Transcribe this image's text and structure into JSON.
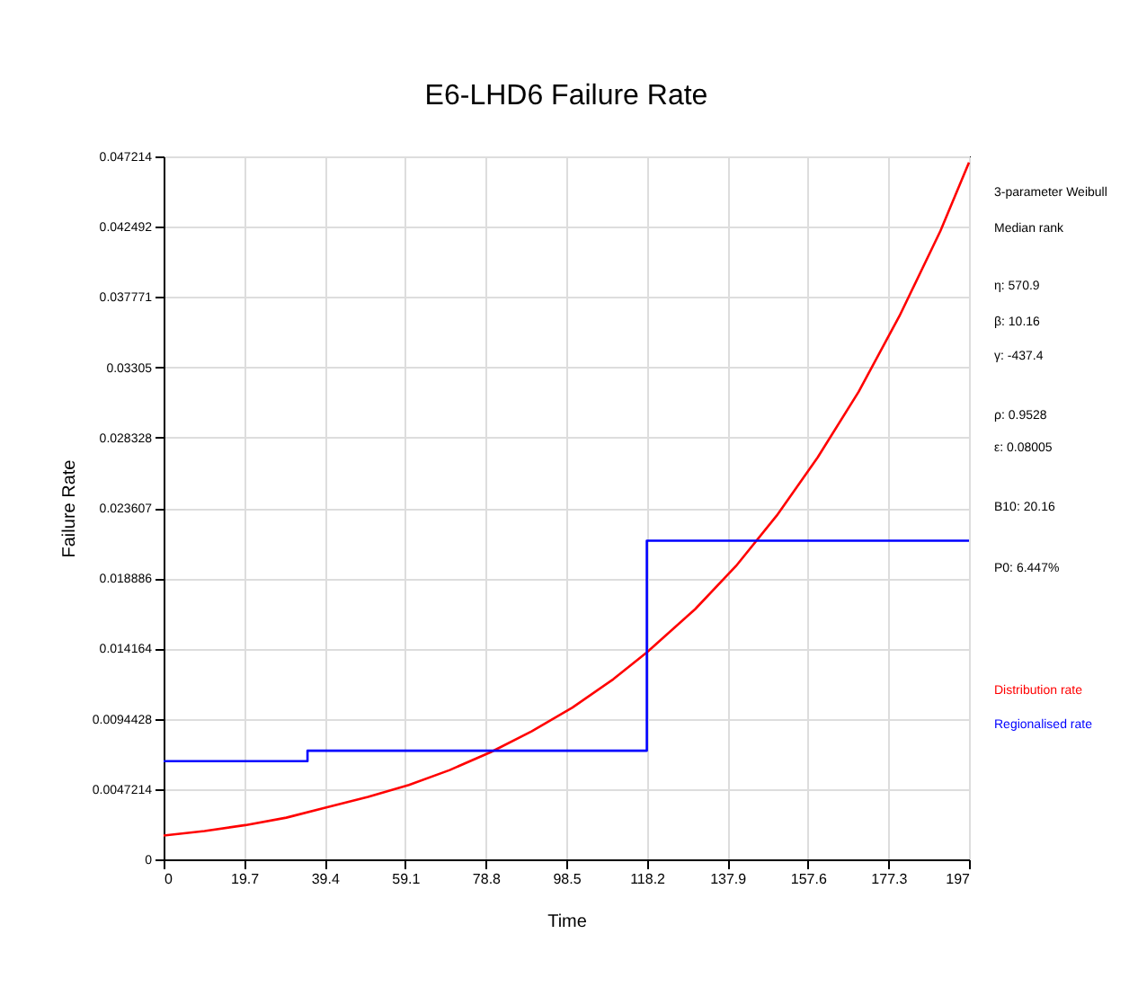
{
  "chart_data": {
    "type": "line",
    "title": "E6-LHD6 Failure Rate",
    "xlabel": "Time",
    "ylabel": "Failure Rate",
    "xlim": [
      0,
      197
    ],
    "xticks": [
      0,
      19.7,
      39.4,
      59.1,
      78.8,
      98.5,
      118.2,
      137.9,
      157.6,
      177.3,
      197
    ],
    "ylim": [
      0,
      0.047214
    ],
    "yticks": [
      0,
      0.0047214,
      0.0094428,
      0.014164,
      0.018886,
      0.023607,
      0.028328,
      0.03305,
      0.037771,
      0.042492,
      0.047214
    ],
    "grid": true,
    "legend": "right",
    "series": [
      {
        "name": "Distribution rate",
        "color": "#ff0000",
        "type": "line",
        "x": [
          0,
          10,
          20,
          30,
          40,
          50,
          60,
          70,
          80,
          90,
          100,
          110,
          118.2,
          130,
          140,
          150,
          160,
          170,
          180,
          190,
          197
        ],
        "values": [
          0.0016,
          0.0019,
          0.0023,
          0.0028,
          0.0035,
          0.0042,
          0.005,
          0.006,
          0.0072,
          0.0086,
          0.0102,
          0.0121,
          0.0139,
          0.0168,
          0.0197,
          0.0231,
          0.027,
          0.0314,
          0.0365,
          0.0422,
          0.0468
        ]
      },
      {
        "name": "Regionalised rate",
        "color": "#0000ff",
        "type": "step",
        "x": [
          0,
          35.2,
          118.2,
          197
        ],
        "values": [
          0.0066,
          0.0073,
          0.0214,
          0.0214
        ]
      }
    ],
    "annotations": [
      "3-parameter Weibull",
      "Median rank",
      "η: 570.9",
      "β: 10.16",
      "γ: -437.4",
      "ρ: 0.9528",
      "ε: 0.08005",
      "B10: 20.16",
      "P0: 6.447%"
    ]
  }
}
